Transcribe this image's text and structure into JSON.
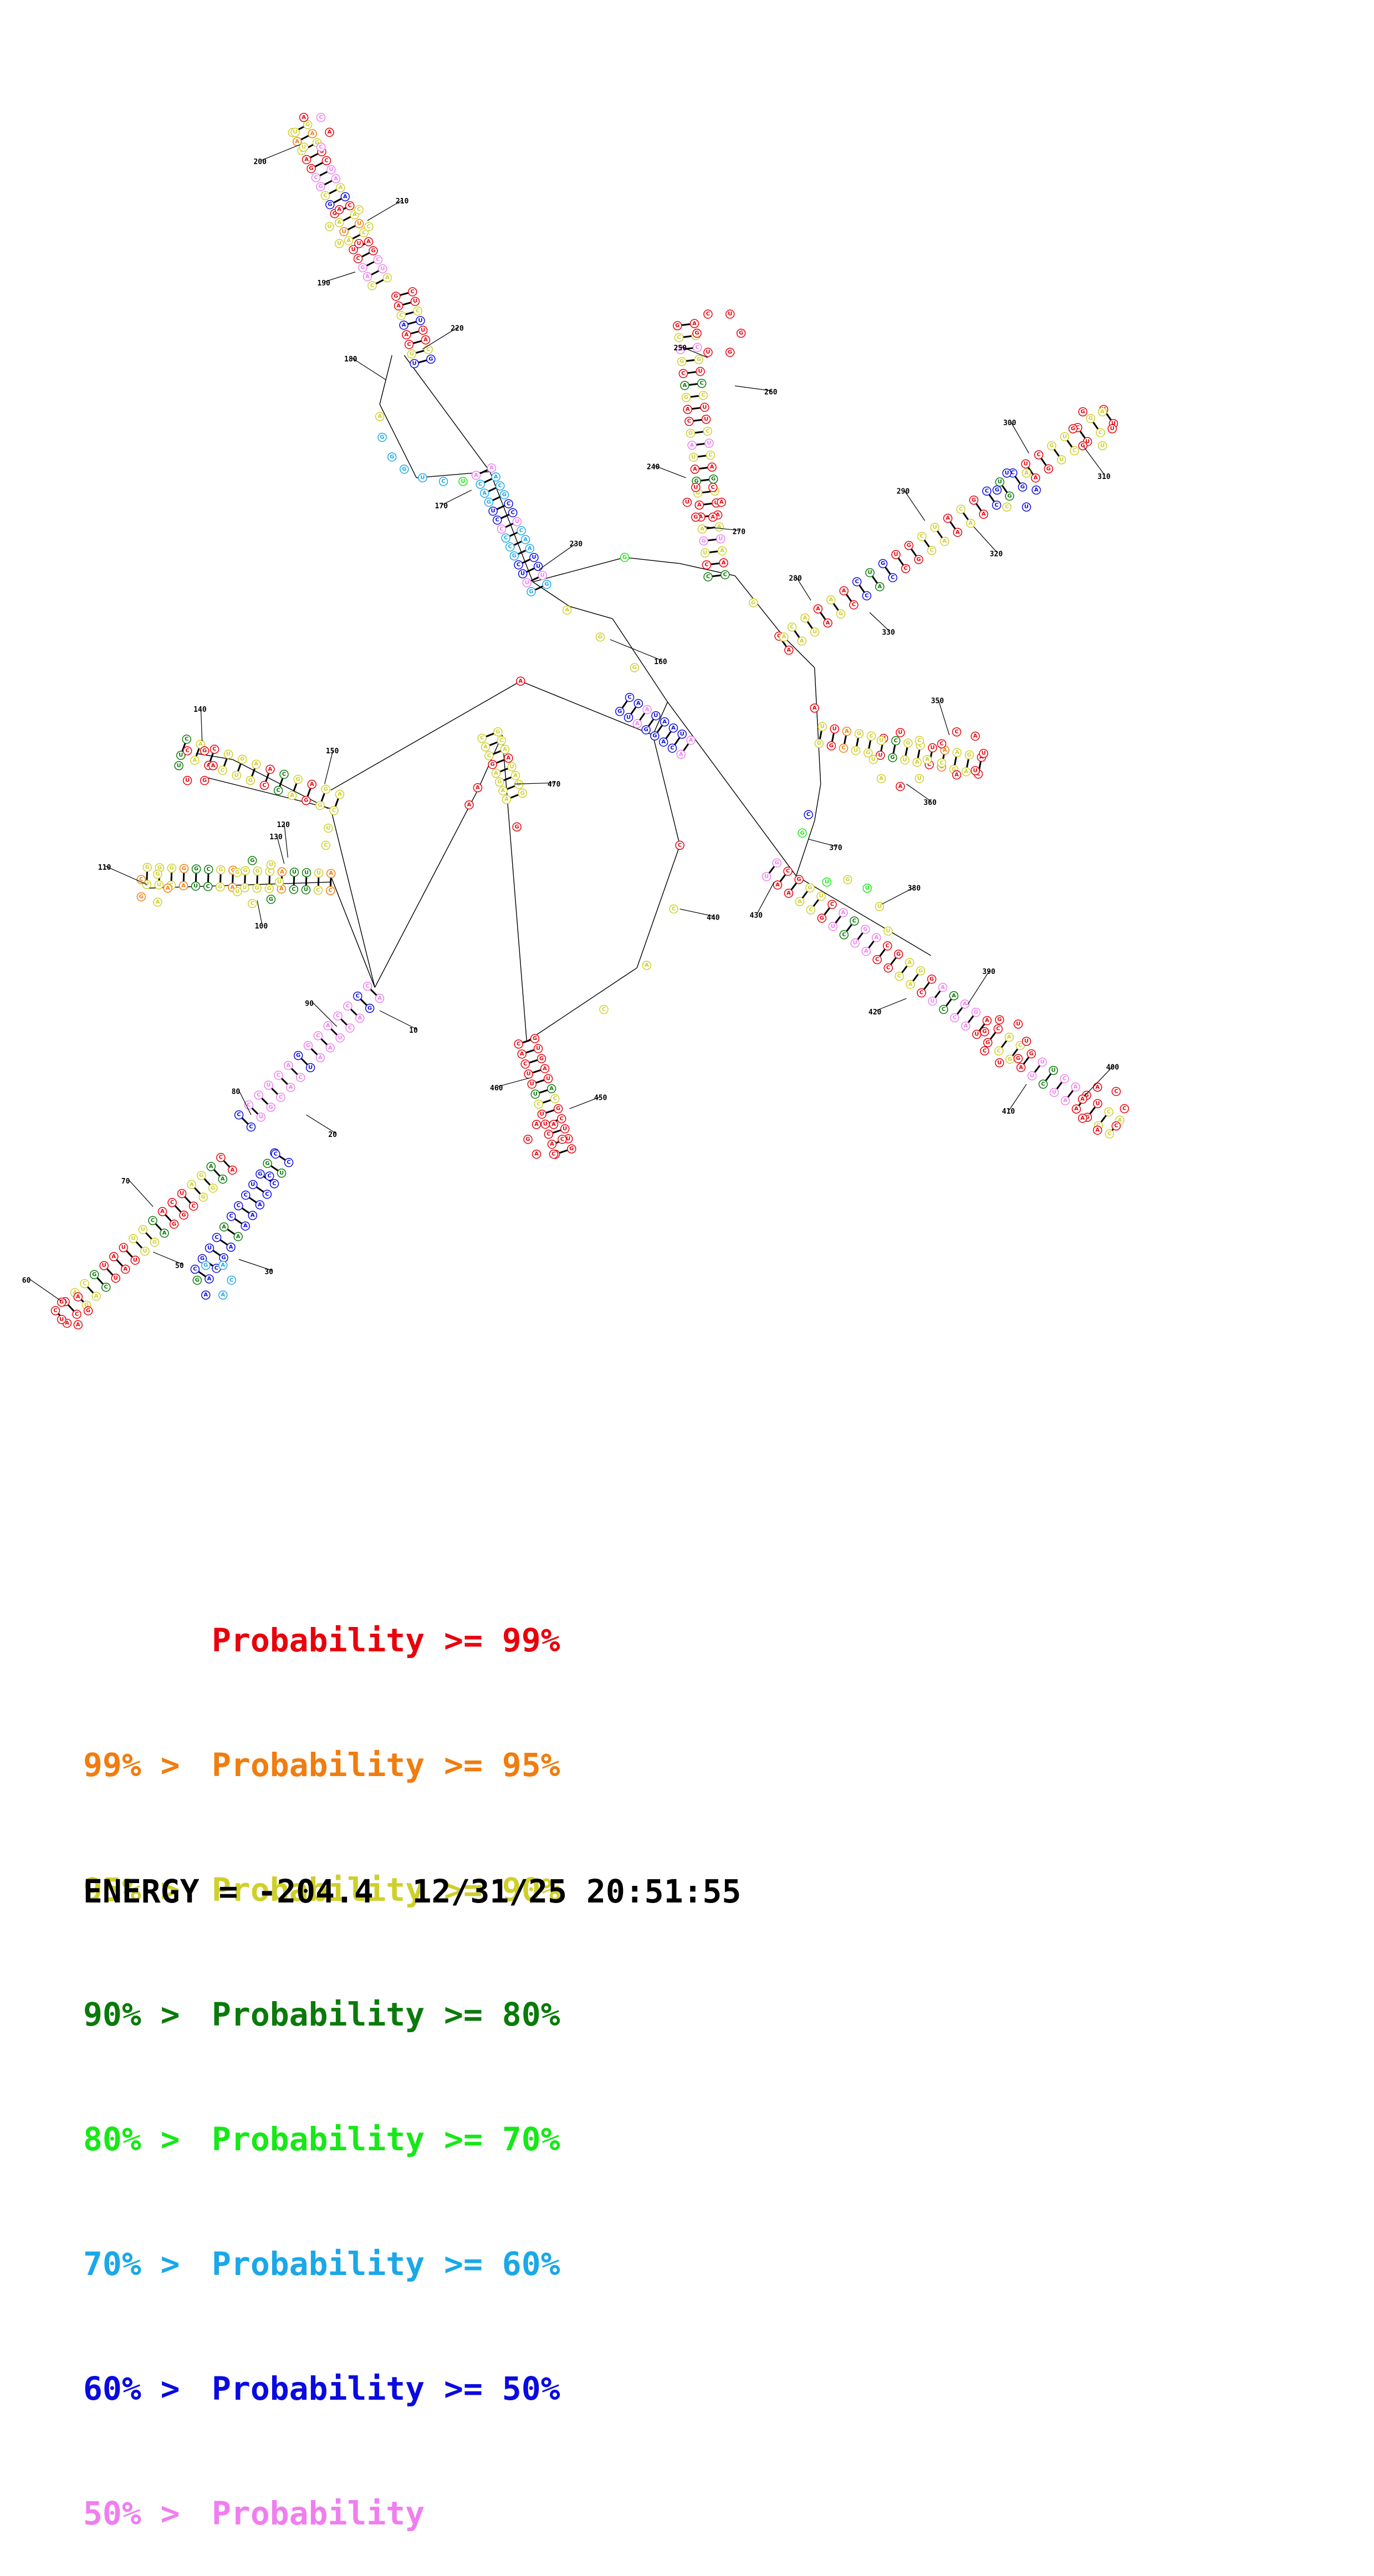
{
  "position_labels": [
    "10",
    "20",
    "30",
    "50",
    "60",
    "70",
    "80",
    "90",
    "100",
    "110",
    "120",
    "130",
    "140",
    "150",
    "160",
    "170",
    "180",
    "190",
    "200",
    "210",
    "220",
    "230",
    "240",
    "250",
    "260",
    "270",
    "280",
    "290",
    "300",
    "310",
    "320",
    "330",
    "350",
    "360",
    "370",
    "380",
    "390",
    "400",
    "410",
    "420",
    "430",
    "440",
    "450",
    "460",
    "470"
  ],
  "legend": [
    {
      "prefix": "",
      "label": "Probability >= 99%",
      "color": "#e8000b"
    },
    {
      "prefix": "99% > ",
      "label": "Probability >= 95%",
      "color": "#f07d0f"
    },
    {
      "prefix": "95% > ",
      "label": "Probability >= 90%",
      "color": "#cfcf2a"
    },
    {
      "prefix": "90% > ",
      "label": "Probability >= 80%",
      "color": "#0a7a0a"
    },
    {
      "prefix": "80% > ",
      "label": "Probability >= 70%",
      "color": "#17e817"
    },
    {
      "prefix": "70% > ",
      "label": "Probability >= 60%",
      "color": "#1aa8e8"
    },
    {
      "prefix": "60% > ",
      "label": "Probability >= 50%",
      "color": "#0a0ae0"
    },
    {
      "prefix": "50% > ",
      "label": "Probability",
      "color": "#f07ef0"
    }
  ],
  "footer": {
    "energy": "ENERGY = -204.4",
    "timestamp": "12/31/25 20:51:55"
  }
}
